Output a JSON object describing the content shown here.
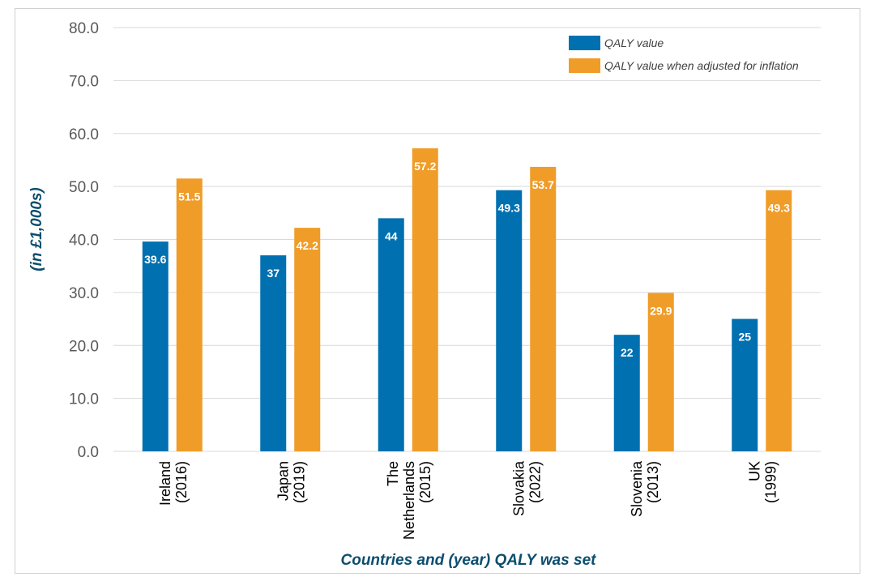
{
  "chart_data": {
    "type": "bar",
    "categories": [
      [
        "Ireland",
        "(2016)"
      ],
      [
        "Japan",
        "(2019)"
      ],
      [
        "The",
        "Netherlands",
        "(2015)"
      ],
      [
        "Slovakia",
        "(2022)"
      ],
      [
        "Slovenia",
        "(2013)"
      ],
      [
        "UK",
        "(1999)"
      ]
    ],
    "series": [
      {
        "name": "QALY value",
        "color": "#0070b0",
        "values": [
          39.6,
          37,
          44,
          49.3,
          22,
          25
        ],
        "labels": [
          "39.6",
          "37",
          "44",
          "49.3",
          "22",
          "25"
        ]
      },
      {
        "name": "QALY value when adjusted for inflation",
        "color": "#f09c28",
        "values": [
          51.5,
          42.2,
          57.2,
          53.7,
          29.9,
          49.3
        ],
        "labels": [
          "51.5",
          "42.2",
          "57.2",
          "53.7",
          "29.9",
          "49.3"
        ]
      }
    ],
    "yticks": [
      "0.0",
      "10.0",
      "20.0",
      "30.0",
      "40.0",
      "50.0",
      "60.0",
      "70.0",
      "80.0"
    ],
    "ylim": [
      0,
      80
    ],
    "ylabel": "(in £1,000s)",
    "xlabel": "Countries and (year) QALY was set",
    "grid": true,
    "legend_position": "top-right",
    "gridline_color": "#d9d9d9"
  }
}
